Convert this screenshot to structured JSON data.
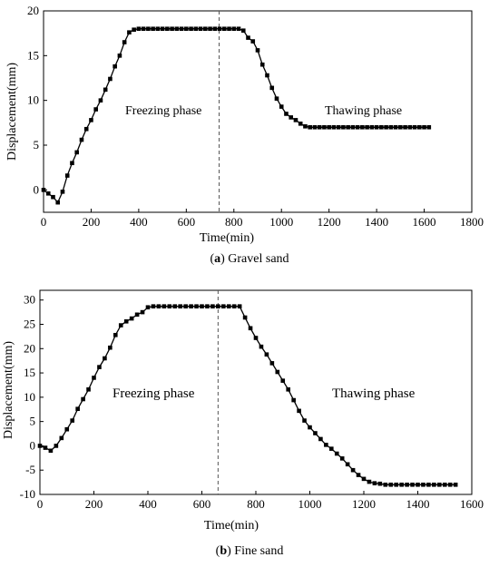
{
  "captions": [
    {
      "label": "a",
      "text": "Gravel sand"
    },
    {
      "label": "b",
      "text": "Fine sand"
    }
  ],
  "chart_data": [
    {
      "type": "line",
      "title": "",
      "xlabel": "Time(min)",
      "ylabel": "Displacement(mm)",
      "xlim": [
        0,
        1800
      ],
      "ylim": [
        -2.5,
        20
      ],
      "xticks": [
        0,
        200,
        400,
        600,
        800,
        1000,
        1200,
        1400,
        1600,
        1800
      ],
      "yticks": [
        0,
        5,
        10,
        15,
        20
      ],
      "grid": false,
      "vline_x": 738,
      "annotations": [
        "Freezing phase",
        "Thawing phase"
      ],
      "marker": "square",
      "series": [
        {
          "x": [
            0,
            20,
            40,
            60,
            80,
            100,
            120,
            140,
            160,
            180,
            200,
            220,
            240,
            260,
            280,
            300,
            320,
            340,
            360,
            380,
            400,
            420,
            440,
            460,
            480,
            500,
            520,
            540,
            560,
            580,
            600,
            620,
            640,
            660,
            680,
            700,
            720,
            740,
            760,
            780,
            800,
            820,
            840,
            860,
            880,
            900,
            920,
            940,
            960,
            980,
            1000,
            1020,
            1040,
            1060,
            1080,
            1100,
            1120,
            1140,
            1160,
            1180,
            1200,
            1220,
            1240,
            1260,
            1280,
            1300,
            1320,
            1340,
            1360,
            1380,
            1400,
            1420,
            1440,
            1460,
            1480,
            1500,
            1520,
            1540,
            1560,
            1580,
            1600,
            1620
          ],
          "y": [
            0,
            -0.4,
            -0.8,
            -1.4,
            -0.2,
            1.6,
            3.0,
            4.2,
            5.6,
            6.8,
            7.8,
            9.0,
            10.0,
            11.2,
            12.4,
            13.8,
            15.0,
            16.5,
            17.6,
            17.9,
            18.0,
            18.0,
            18.0,
            18.0,
            18.0,
            18.0,
            18.0,
            18.0,
            18.0,
            18.0,
            18.0,
            18.0,
            18.0,
            18.0,
            18.0,
            18.0,
            18.0,
            18.0,
            18.0,
            18.0,
            18.0,
            18.0,
            17.8,
            17.0,
            16.6,
            15.6,
            14.0,
            12.8,
            11.4,
            10.2,
            9.3,
            8.5,
            8.1,
            7.8,
            7.4,
            7.1,
            7.0,
            7.0,
            7.0,
            7.0,
            7.0,
            7.0,
            7.0,
            7.0,
            7.0,
            7.0,
            7.0,
            7.0,
            7.0,
            7.0,
            7.0,
            7.0,
            7.0,
            7.0,
            7.0,
            7.0,
            7.0,
            7.0,
            7.0,
            7.0,
            7.0,
            7.0
          ]
        }
      ]
    },
    {
      "type": "line",
      "title": "",
      "xlabel": "Time(min)",
      "ylabel": "Displacement(mm)",
      "xlim": [
        0,
        1600
      ],
      "ylim": [
        -10,
        32
      ],
      "xticks": [
        0,
        200,
        400,
        600,
        800,
        1000,
        1200,
        1400,
        1600
      ],
      "yticks": [
        -10,
        -5,
        0,
        5,
        10,
        15,
        20,
        25,
        30
      ],
      "grid": false,
      "vline_x": 660,
      "annotations": [
        "Freezing phase",
        "Thawing phase"
      ],
      "marker": "square",
      "series": [
        {
          "x": [
            0,
            20,
            40,
            60,
            80,
            100,
            120,
            140,
            160,
            180,
            200,
            220,
            240,
            260,
            280,
            300,
            320,
            340,
            360,
            380,
            400,
            420,
            440,
            460,
            480,
            500,
            520,
            540,
            560,
            580,
            600,
            620,
            640,
            660,
            680,
            700,
            720,
            740,
            760,
            780,
            800,
            820,
            840,
            860,
            880,
            900,
            920,
            940,
            960,
            980,
            1000,
            1020,
            1040,
            1060,
            1080,
            1100,
            1120,
            1140,
            1160,
            1180,
            1200,
            1220,
            1240,
            1260,
            1280,
            1300,
            1320,
            1340,
            1360,
            1380,
            1400,
            1420,
            1440,
            1460,
            1480,
            1500,
            1520,
            1540
          ],
          "y": [
            0,
            -0.4,
            -1.0,
            0.0,
            1.6,
            3.4,
            5.2,
            7.6,
            9.6,
            11.6,
            14.0,
            16.2,
            18.0,
            20.2,
            22.8,
            24.8,
            25.6,
            26.2,
            27.0,
            27.5,
            28.5,
            28.7,
            28.7,
            28.7,
            28.7,
            28.7,
            28.7,
            28.7,
            28.7,
            28.7,
            28.7,
            28.7,
            28.7,
            28.7,
            28.7,
            28.7,
            28.7,
            28.7,
            26.4,
            24.2,
            22.2,
            20.4,
            18.8,
            17.0,
            15.2,
            13.4,
            11.6,
            9.4,
            7.2,
            5.2,
            3.8,
            2.6,
            1.4,
            0.2,
            -0.6,
            -1.6,
            -2.6,
            -3.8,
            -5.0,
            -6.0,
            -6.8,
            -7.4,
            -7.7,
            -7.8,
            -8.0,
            -8.0,
            -8.0,
            -8.0,
            -8.0,
            -8.0,
            -8.0,
            -8.0,
            -8.0,
            -8.0,
            -8.0,
            -8.0,
            -8.0,
            -8.0
          ]
        }
      ]
    }
  ]
}
